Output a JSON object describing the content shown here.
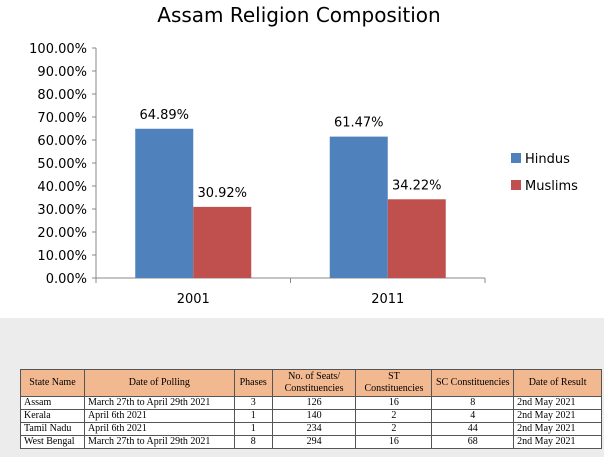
{
  "chart_data": {
    "type": "bar",
    "title": "Assam Religion Composition",
    "categories": [
      "2001",
      "2011"
    ],
    "series": [
      {
        "name": "Hindus",
        "values": [
          64.89,
          61.47
        ],
        "labels": [
          "64.89%",
          "61.47%"
        ],
        "color": "#4f81bd"
      },
      {
        "name": "Muslims",
        "values": [
          30.92,
          34.22
        ],
        "labels": [
          "30.92%",
          "34.22%"
        ],
        "color": "#c0504d"
      }
    ],
    "ylim": [
      0,
      100
    ],
    "yticks": [
      "0.00%",
      "10.00%",
      "20.00%",
      "30.00%",
      "40.00%",
      "50.00%",
      "60.00%",
      "70.00%",
      "80.00%",
      "90.00%",
      "100.00%"
    ],
    "legend": "right",
    "grid": false
  },
  "table": {
    "headers": [
      "State Name",
      "Date of Polling",
      "Phases",
      "No. of Seats/ Constituencies",
      "ST Constituencies",
      "SC Constituencies",
      "Date of Result"
    ],
    "rows": [
      [
        "Assam",
        "March 27th to April 29th 2021",
        "3",
        "126",
        "16",
        "8",
        "2nd May 2021"
      ],
      [
        "Kerala",
        "April 6th 2021",
        "1",
        "140",
        "2",
        "4",
        "2nd May 2021"
      ],
      [
        "Tamil Nadu",
        "April 6th 2021",
        "1",
        "234",
        "2",
        "44",
        "2nd May 2021"
      ],
      [
        "West Bengal",
        "March 27th to April 29th 2021",
        "8",
        "294",
        "16",
        "68",
        "2nd May 2021"
      ]
    ]
  }
}
